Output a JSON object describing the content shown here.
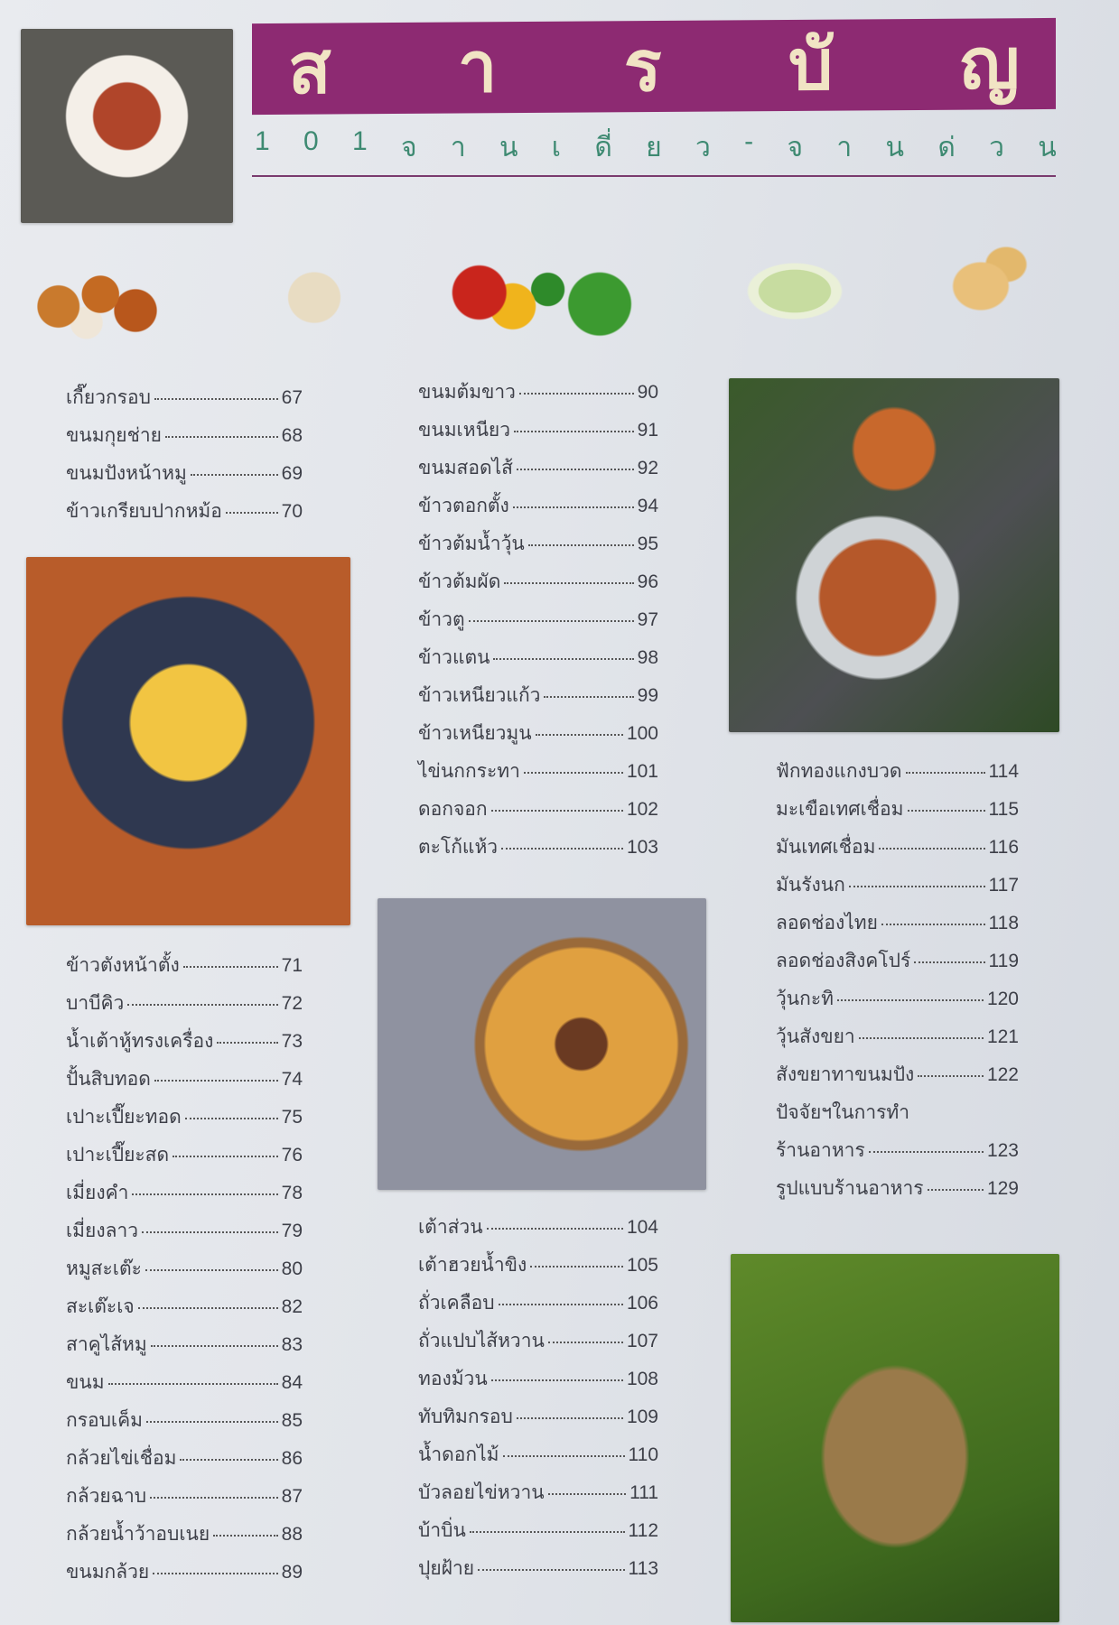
{
  "header": {
    "title_letters": [
      "ส",
      "า",
      "ร",
      "บั",
      "ญ"
    ],
    "title": "สารบัญ",
    "subtitle_chars": [
      "1",
      "0",
      "1",
      "จ",
      "า",
      "น",
      "เ",
      "ดี่",
      "ย",
      "ว",
      "-",
      "จ",
      "า",
      "น",
      "ด่",
      "ว",
      "น"
    ],
    "subtitle": "101 จานเดี่ยว-จานด่วน",
    "banner_color": "#8d2a72",
    "subtitle_color": "#3e8a72"
  },
  "toc": {
    "col1_top": [
      {
        "name": "เกี๊ยวกรอบ",
        "page": "67"
      },
      {
        "name": "ขนมกุยช่าย",
        "page": "68"
      },
      {
        "name": "ขนมปังหน้าหมู",
        "page": "69"
      },
      {
        "name": "ข้าวเกรียบปากหม้อ",
        "page": "70"
      }
    ],
    "col1_bottom": [
      {
        "name": "ข้าวตังหน้าตั้ง",
        "page": "71"
      },
      {
        "name": "บาบีคิว",
        "page": "72"
      },
      {
        "name": "น้ำเต้าหู้ทรงเครื่อง",
        "page": "73"
      },
      {
        "name": "ปั้นสิบทอด",
        "page": "74"
      },
      {
        "name": "เปาะเปี๊ยะทอด",
        "page": "75"
      },
      {
        "name": "เปาะเปี๊ยะสด",
        "page": "76"
      },
      {
        "name": "เมี่ยงคำ",
        "page": "78"
      },
      {
        "name": "เมี่ยงลาว",
        "page": "79"
      },
      {
        "name": "หมูสะเต๊ะ",
        "page": "80"
      },
      {
        "name": "สะเต๊ะเจ",
        "page": "82"
      },
      {
        "name": "สาคูไส้หมู",
        "page": "83"
      },
      {
        "name": "ขนม",
        "page": "84"
      },
      {
        "name": "กรอบเค็ม",
        "page": "85"
      },
      {
        "name": "กล้วยไข่เชื่อม",
        "page": "86"
      },
      {
        "name": "กล้วยฉาบ",
        "page": "87"
      },
      {
        "name": "กล้วยน้ำว้าอบเนย",
        "page": "88"
      },
      {
        "name": "ขนมกล้วย",
        "page": "89"
      }
    ],
    "col2_top": [
      {
        "name": "ขนมต้มขาว",
        "page": "90"
      },
      {
        "name": "ขนมเหนียว",
        "page": "91"
      },
      {
        "name": "ขนมสอดไส้",
        "page": "92"
      },
      {
        "name": "ข้าวตอกตั้ง",
        "page": "94"
      },
      {
        "name": "ข้าวต้มน้ำวุ้น",
        "page": "95"
      },
      {
        "name": "ข้าวต้มผัด",
        "page": "96"
      },
      {
        "name": "ข้าวตู",
        "page": "97"
      },
      {
        "name": "ข้าวแตน",
        "page": "98"
      },
      {
        "name": "ข้าวเหนียวแก้ว",
        "page": "99"
      },
      {
        "name": "ข้าวเหนียวมูน",
        "page": "100"
      },
      {
        "name": "ไข่นกกระทา",
        "page": "101"
      },
      {
        "name": "ดอกจอก",
        "page": "102"
      },
      {
        "name": "ตะโก้แห้ว",
        "page": "103"
      }
    ],
    "col2_bottom": [
      {
        "name": "เต้าส่วน",
        "page": "104"
      },
      {
        "name": "เต้าฮวยน้ำขิง",
        "page": "105"
      },
      {
        "name": "ถั่วเคลือบ",
        "page": "106"
      },
      {
        "name": "ถั่วแปบไส้หวาน",
        "page": "107"
      },
      {
        "name": "ทองม้วน",
        "page": "108"
      },
      {
        "name": "ทับทิมกรอบ",
        "page": "109"
      },
      {
        "name": "น้ำดอกไม้",
        "page": "110"
      },
      {
        "name": "บัวลอยไข่หวาน",
        "page": "111"
      },
      {
        "name": "บ้าบิ่น",
        "page": "112"
      },
      {
        "name": "ปุยฝ้าย",
        "page": "113"
      }
    ],
    "col3": [
      {
        "name": "ฟักทองแกงบวด",
        "page": "114"
      },
      {
        "name": "มะเขือเทศเชื่อม",
        "page": "115"
      },
      {
        "name": "มันเทศเชื่อม",
        "page": "116"
      },
      {
        "name": "มันรังนก",
        "page": "117"
      },
      {
        "name": "ลอดช่องไทย",
        "page": "118"
      },
      {
        "name": "ลอดช่องสิงคโปร์",
        "page": "119"
      },
      {
        "name": "วุ้นกะทิ",
        "page": "120"
      },
      {
        "name": "วุ้นสังขยา",
        "page": "121"
      },
      {
        "name": "สังขยาทาขนมปัง",
        "page": "122"
      },
      {
        "name": "ปัจจัยฯในการทำ",
        "page": ""
      },
      {
        "name": "ร้านอาหาร",
        "page": "123"
      },
      {
        "name": "รูปแบบร้านอาหาร",
        "page": "129"
      }
    ]
  }
}
